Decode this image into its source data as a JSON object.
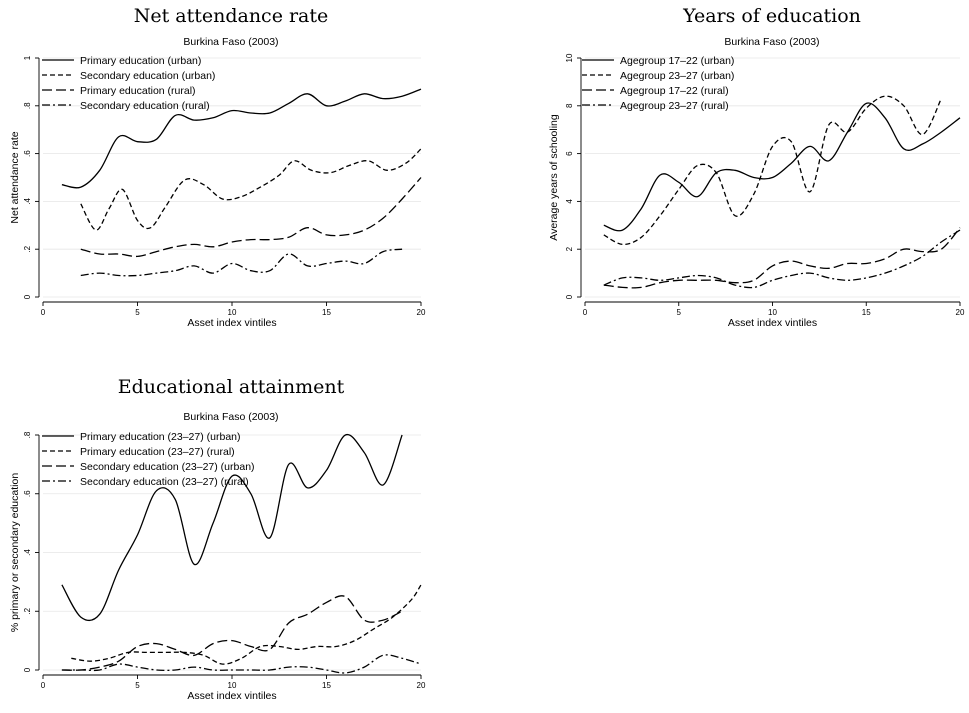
{
  "chart_data": [
    {
      "type": "line",
      "title": "Net attendance rate",
      "subtitle": "Burkina Faso (2003)",
      "xlabel": "Asset index vintiles",
      "ylabel": "Net attendance rate",
      "xlim": [
        0,
        20
      ],
      "ylim": [
        0,
        1
      ],
      "xticks": [
        0,
        5,
        10,
        15,
        20
      ],
      "yticks": [
        0,
        0.2,
        0.4,
        0.6,
        0.8,
        1
      ],
      "yticklabels": [
        "0",
        ".2",
        ".4",
        ".6",
        ".8",
        "1"
      ],
      "grid": true,
      "legend_position": "top-left",
      "series": [
        {
          "name": "Primary education (urban)",
          "style": "solid",
          "x": [
            1,
            2,
            3,
            4,
            5,
            6,
            7,
            8,
            9,
            10,
            11,
            12,
            13,
            14,
            15,
            16,
            17,
            18,
            19,
            20
          ],
          "y": [
            0.47,
            0.46,
            0.53,
            0.67,
            0.65,
            0.66,
            0.76,
            0.74,
            0.75,
            0.78,
            0.77,
            0.77,
            0.81,
            0.85,
            0.8,
            0.82,
            0.85,
            0.83,
            0.84,
            0.87
          ]
        },
        {
          "name": "Secondary education (urban)",
          "style": "dashed",
          "x": [
            2,
            2.8,
            3.5,
            4.2,
            5,
            5.7,
            6.5,
            7.5,
            8.5,
            9.5,
            10.5,
            11.5,
            12.5,
            13.3,
            14.2,
            15.2,
            16.2,
            17.2,
            18.2,
            19.2,
            20
          ],
          "y": [
            0.39,
            0.28,
            0.37,
            0.45,
            0.32,
            0.29,
            0.38,
            0.49,
            0.47,
            0.41,
            0.42,
            0.46,
            0.51,
            0.57,
            0.53,
            0.52,
            0.55,
            0.57,
            0.53,
            0.56,
            0.62
          ]
        },
        {
          "name": "Primary education (rural)",
          "style": "longdash",
          "x": [
            2,
            3,
            4,
            5,
            6,
            7,
            8,
            9,
            10,
            11,
            12,
            13,
            14,
            15,
            16,
            17,
            18,
            19,
            20
          ],
          "y": [
            0.2,
            0.18,
            0.18,
            0.17,
            0.19,
            0.21,
            0.22,
            0.21,
            0.23,
            0.24,
            0.24,
            0.25,
            0.29,
            0.26,
            0.26,
            0.28,
            0.33,
            0.41,
            0.5
          ]
        },
        {
          "name": "Secondary education (rural)",
          "style": "dashdot",
          "x": [
            2,
            3,
            4,
            5,
            6,
            7,
            8,
            9,
            10,
            11,
            12,
            13,
            14,
            15,
            16,
            17,
            18,
            19
          ],
          "y": [
            0.09,
            0.1,
            0.09,
            0.09,
            0.1,
            0.11,
            0.13,
            0.1,
            0.14,
            0.11,
            0.11,
            0.18,
            0.13,
            0.14,
            0.15,
            0.14,
            0.19,
            0.2
          ]
        }
      ]
    },
    {
      "type": "line",
      "title": "Years of education",
      "subtitle": "Burkina Faso (2003)",
      "xlabel": "Asset index vintiles",
      "ylabel": "Average years of schooling",
      "xlim": [
        0,
        20
      ],
      "ylim": [
        0,
        10
      ],
      "xticks": [
        0,
        5,
        10,
        15,
        20
      ],
      "yticks": [
        0,
        2,
        4,
        6,
        8,
        10
      ],
      "yticklabels": [
        "0",
        "2",
        "4",
        "6",
        "8",
        "10"
      ],
      "grid": true,
      "legend_position": "top-left",
      "series": [
        {
          "name": "Agegroup 17–22 (urban)",
          "style": "solid",
          "x": [
            1,
            2,
            3,
            4,
            5,
            6,
            7,
            8,
            9,
            10,
            11,
            12,
            13,
            14,
            15,
            16,
            17,
            18,
            19,
            20
          ],
          "y": [
            3.0,
            2.8,
            3.7,
            5.1,
            4.8,
            4.2,
            5.2,
            5.3,
            5.0,
            5.0,
            5.6,
            6.3,
            5.7,
            6.9,
            8.1,
            7.5,
            6.2,
            6.4,
            6.9,
            7.5
          ]
        },
        {
          "name": "Agegroup 23–27 (urban)",
          "style": "dashed",
          "x": [
            1,
            2,
            3,
            4,
            5,
            6,
            7,
            8,
            9,
            10,
            11,
            12,
            13,
            14,
            15,
            16,
            17,
            18,
            19
          ],
          "y": [
            2.6,
            2.2,
            2.5,
            3.4,
            4.5,
            5.5,
            5.2,
            3.4,
            4.3,
            6.3,
            6.5,
            4.4,
            7.2,
            6.9,
            7.9,
            8.4,
            8.0,
            6.8,
            8.3
          ]
        },
        {
          "name": "Agegroup 17–22 (rural)",
          "style": "longdash",
          "x": [
            1,
            2,
            3,
            4,
            5,
            6,
            7,
            8,
            9,
            10,
            11,
            12,
            13,
            14,
            15,
            16,
            17,
            18,
            19,
            20
          ],
          "y": [
            0.5,
            0.4,
            0.4,
            0.6,
            0.7,
            0.7,
            0.7,
            0.6,
            0.7,
            1.3,
            1.5,
            1.3,
            1.2,
            1.4,
            1.4,
            1.6,
            2.0,
            1.9,
            2.0,
            2.9
          ]
        },
        {
          "name": "Agegroup 23–27 (rural)",
          "style": "dashdot",
          "x": [
            1,
            2,
            3,
            4,
            5,
            6,
            7,
            8,
            9,
            10,
            11,
            12,
            13,
            14,
            15,
            16,
            17,
            18,
            19,
            20
          ],
          "y": [
            0.5,
            0.8,
            0.8,
            0.7,
            0.8,
            0.9,
            0.8,
            0.5,
            0.4,
            0.7,
            0.9,
            1.0,
            0.8,
            0.7,
            0.8,
            1.0,
            1.3,
            1.7,
            2.3,
            2.8
          ]
        }
      ]
    },
    {
      "type": "line",
      "title": "Educational attainment",
      "subtitle": "Burkina Faso (2003)",
      "xlabel": "Asset index vintiles",
      "ylabel": "% primary or secondary education",
      "xlim": [
        0,
        20
      ],
      "ylim": [
        0,
        0.8
      ],
      "xticks": [
        0,
        5,
        10,
        15,
        20
      ],
      "yticks": [
        0,
        0.2,
        0.4,
        0.6,
        0.8
      ],
      "yticklabels": [
        "0",
        ".2",
        ".4",
        ".6",
        ".8"
      ],
      "grid": true,
      "legend_position": "top-left",
      "series": [
        {
          "name": "Primary education (23–27) (urban)",
          "style": "solid",
          "x": [
            1,
            2,
            3,
            4,
            5,
            6,
            7,
            8,
            9,
            10,
            11,
            12,
            13,
            14,
            15,
            16,
            17,
            18,
            19
          ],
          "y": [
            0.29,
            0.18,
            0.19,
            0.34,
            0.46,
            0.61,
            0.58,
            0.36,
            0.5,
            0.66,
            0.6,
            0.45,
            0.7,
            0.62,
            0.68,
            0.8,
            0.74,
            0.63,
            0.8
          ]
        },
        {
          "name": "Primary education (23–27) (rural)",
          "style": "dashed",
          "x": [
            1.5,
            2.5,
            3.5,
            4.5,
            5.5,
            6.5,
            7.5,
            8.5,
            9.5,
            10.5,
            11.5,
            12.5,
            13.5,
            14.5,
            15.5,
            16.5,
            17.5,
            18.5,
            19.5,
            20
          ],
          "y": [
            0.04,
            0.03,
            0.04,
            0.06,
            0.06,
            0.06,
            0.06,
            0.05,
            0.02,
            0.04,
            0.08,
            0.08,
            0.07,
            0.08,
            0.08,
            0.1,
            0.14,
            0.18,
            0.24,
            0.29
          ]
        },
        {
          "name": "Secondary education (23–27) (urban)",
          "style": "longdash",
          "x": [
            1,
            2,
            3,
            4,
            5,
            6,
            7,
            8,
            9,
            10,
            11,
            12,
            13,
            14,
            15,
            16,
            17,
            18,
            19
          ],
          "y": [
            0.0,
            0.0,
            0.01,
            0.03,
            0.08,
            0.09,
            0.07,
            0.05,
            0.09,
            0.1,
            0.08,
            0.07,
            0.16,
            0.19,
            0.23,
            0.25,
            0.17,
            0.17,
            0.2
          ]
        },
        {
          "name": "Secondary education (23–27) (rural)",
          "style": "dashdot",
          "x": [
            1,
            2,
            3,
            4,
            5,
            6,
            7,
            8,
            9,
            10,
            11,
            12,
            13,
            14,
            15,
            16,
            17,
            18,
            19,
            20
          ],
          "y": [
            0.0,
            0.0,
            0.0,
            0.02,
            0.01,
            0.0,
            0.0,
            0.01,
            0.0,
            0.0,
            0.0,
            0.0,
            0.01,
            0.01,
            0.0,
            -0.01,
            0.01,
            0.05,
            0.04,
            0.02
          ]
        }
      ]
    }
  ]
}
